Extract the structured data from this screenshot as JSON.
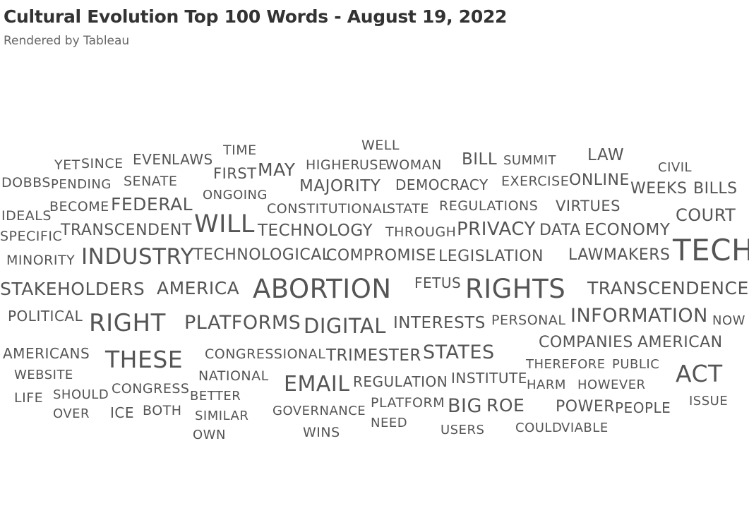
{
  "header": {
    "title": "Cultural Evolution Top 100 Words - August 19, 2022",
    "subtitle": "Rendered by Tableau"
  },
  "colors": {
    "text": "#555555",
    "title": "#333333",
    "subtitle": "#666666",
    "background": "#ffffff"
  },
  "chart_data": {
    "type": "word_cloud",
    "title": "Cultural Evolution Top 100 Words - August 19, 2022",
    "words": [
      {
        "text": "WELL",
        "weight": 19
      },
      {
        "text": "TIME",
        "weight": 19
      },
      {
        "text": "YET",
        "weight": 19
      },
      {
        "text": "SINCE",
        "weight": 19
      },
      {
        "text": "EVEN",
        "weight": 20
      },
      {
        "text": "LAWS",
        "weight": 20
      },
      {
        "text": "HIGHER",
        "weight": 19
      },
      {
        "text": "USE",
        "weight": 19
      },
      {
        "text": "WOMAN",
        "weight": 19
      },
      {
        "text": "BILL",
        "weight": 23
      },
      {
        "text": "SUMMIT",
        "weight": 18
      },
      {
        "text": "LAW",
        "weight": 23
      },
      {
        "text": "CIVIL",
        "weight": 18
      },
      {
        "text": "FIRST",
        "weight": 21
      },
      {
        "text": "MAY",
        "weight": 25
      },
      {
        "text": "DOBBS",
        "weight": 19
      },
      {
        "text": "PENDING",
        "weight": 18
      },
      {
        "text": "SENATE",
        "weight": 19
      },
      {
        "text": "MAJORITY",
        "weight": 23
      },
      {
        "text": "DEMOCRACY",
        "weight": 20
      },
      {
        "text": "EXERCISE",
        "weight": 19
      },
      {
        "text": "ONLINE",
        "weight": 22
      },
      {
        "text": "WEEKS",
        "weight": 22
      },
      {
        "text": "BILLS",
        "weight": 22
      },
      {
        "text": "ONGOING",
        "weight": 18
      },
      {
        "text": "BECOME",
        "weight": 19
      },
      {
        "text": "FEDERAL",
        "weight": 25
      },
      {
        "text": "CONSTITUTIONAL",
        "weight": 19
      },
      {
        "text": "STATE",
        "weight": 19
      },
      {
        "text": "REGULATIONS",
        "weight": 19
      },
      {
        "text": "VIRTUES",
        "weight": 21
      },
      {
        "text": "IDEALS",
        "weight": 19
      },
      {
        "text": "COURT",
        "weight": 24
      },
      {
        "text": "SPECIFIC",
        "weight": 19
      },
      {
        "text": "TRANSCENDENT",
        "weight": 22
      },
      {
        "text": "WILL",
        "weight": 35
      },
      {
        "text": "TECHNOLOGY",
        "weight": 23
      },
      {
        "text": "THROUGH",
        "weight": 19
      },
      {
        "text": "PRIVACY",
        "weight": 26
      },
      {
        "text": "DATA",
        "weight": 22
      },
      {
        "text": "ECONOMY",
        "weight": 23
      },
      {
        "text": "MINORITY",
        "weight": 19
      },
      {
        "text": "INDUSTRY",
        "weight": 31
      },
      {
        "text": "TECHNOLOGICAL",
        "weight": 22
      },
      {
        "text": "COMPROMISE",
        "weight": 22
      },
      {
        "text": "LEGISLATION",
        "weight": 22
      },
      {
        "text": "LAWMAKERS",
        "weight": 22
      },
      {
        "text": "TECH",
        "weight": 42
      },
      {
        "text": "STAKEHOLDERS",
        "weight": 25
      },
      {
        "text": "AMERICA",
        "weight": 25
      },
      {
        "text": "ABORTION",
        "weight": 37
      },
      {
        "text": "FETUS",
        "weight": 20
      },
      {
        "text": "RIGHTS",
        "weight": 37
      },
      {
        "text": "TRANSCENDENCE",
        "weight": 25
      },
      {
        "text": "POLITICAL",
        "weight": 20
      },
      {
        "text": "RIGHT",
        "weight": 34
      },
      {
        "text": "PLATFORMS",
        "weight": 27
      },
      {
        "text": "DIGITAL",
        "weight": 29
      },
      {
        "text": "INTERESTS",
        "weight": 23
      },
      {
        "text": "PERSONAL",
        "weight": 19
      },
      {
        "text": "INFORMATION",
        "weight": 27
      },
      {
        "text": "NOW",
        "weight": 18
      },
      {
        "text": "AMERICANS",
        "weight": 20
      },
      {
        "text": "THESE",
        "weight": 33
      },
      {
        "text": "CONGRESSIONAL",
        "weight": 19
      },
      {
        "text": "TRIMESTER",
        "weight": 23
      },
      {
        "text": "STATES",
        "weight": 27
      },
      {
        "text": "COMPANIES",
        "weight": 22
      },
      {
        "text": "AMERICAN",
        "weight": 22
      },
      {
        "text": "WEBSITE",
        "weight": 18
      },
      {
        "text": "NATIONAL",
        "weight": 19
      },
      {
        "text": "THEREFORE",
        "weight": 18
      },
      {
        "text": "PUBLIC",
        "weight": 18
      },
      {
        "text": "ACT",
        "weight": 33
      },
      {
        "text": "REGULATION",
        "weight": 20
      },
      {
        "text": "INSTITUTE",
        "weight": 20
      },
      {
        "text": "EMAIL",
        "weight": 30
      },
      {
        "text": "HARM",
        "weight": 18
      },
      {
        "text": "HOWEVER",
        "weight": 18
      },
      {
        "text": "LIFE",
        "weight": 19
      },
      {
        "text": "SHOULD",
        "weight": 18
      },
      {
        "text": "CONGRESS",
        "weight": 19
      },
      {
        "text": "BETTER",
        "weight": 18
      },
      {
        "text": "ISSUE",
        "weight": 18
      },
      {
        "text": "PLATFORM",
        "weight": 19
      },
      {
        "text": "BIG",
        "weight": 27
      },
      {
        "text": "ROE",
        "weight": 25
      },
      {
        "text": "POWER",
        "weight": 22
      },
      {
        "text": "PEOPLE",
        "weight": 20
      },
      {
        "text": "OVER",
        "weight": 18
      },
      {
        "text": "ICE",
        "weight": 20
      },
      {
        "text": "BOTH",
        "weight": 19
      },
      {
        "text": "GOVERNANCE",
        "weight": 18
      },
      {
        "text": "SIMILAR",
        "weight": 18
      },
      {
        "text": "NEED",
        "weight": 18
      },
      {
        "text": "USERS",
        "weight": 18
      },
      {
        "text": "COULD",
        "weight": 18
      },
      {
        "text": "VIABLE",
        "weight": 18
      },
      {
        "text": "WINS",
        "weight": 19
      },
      {
        "text": "OWN",
        "weight": 18
      }
    ]
  }
}
